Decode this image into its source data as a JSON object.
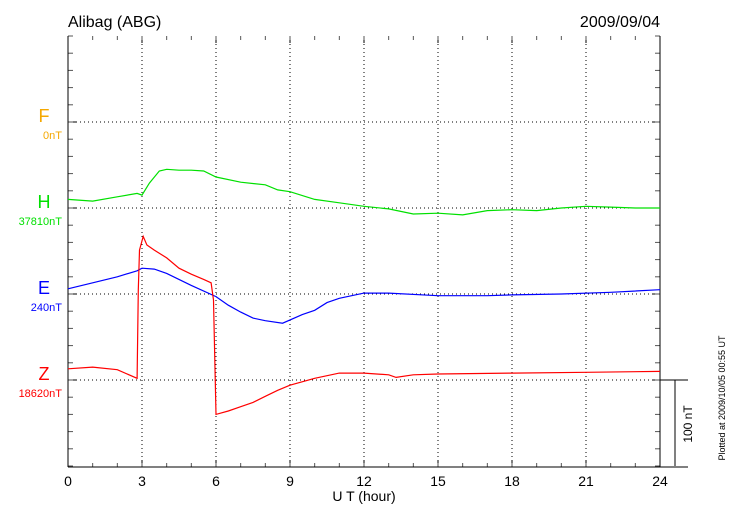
{
  "header": {
    "station": "Alibag (ABG)",
    "date": "2009/09/04"
  },
  "footer_note": "Plotted at 2009/10/05 00:55 UT",
  "chart_data": {
    "type": "line",
    "xlabel": "U T (hour)",
    "xlim": [
      0,
      24
    ],
    "xticks": [
      "0",
      "3",
      "6",
      "9",
      "12",
      "15",
      "18",
      "21",
      "24"
    ],
    "x_minor_tick_step_hours": 1,
    "y_tick_step_nT": 20,
    "grid": true,
    "scale_bar": {
      "value_nT": 100,
      "label": "100 nT"
    },
    "panel_range_nT": [
      -100,
      100
    ],
    "series": [
      {
        "name": "F",
        "baseline_label": "0nT",
        "color": "#f5a800",
        "x": [],
        "y": []
      },
      {
        "name": "H",
        "baseline_label": "37810nT",
        "color": "#00e000",
        "x": [
          0,
          1,
          2,
          2.8,
          3,
          3.3,
          3.7,
          4,
          4.5,
          5,
          5.5,
          6,
          7,
          8,
          8.5,
          9,
          10,
          11,
          12,
          13,
          14,
          15,
          16,
          17,
          18,
          19,
          20,
          21,
          22,
          23,
          24
        ],
        "y": [
          10,
          8,
          13,
          17,
          15,
          29,
          43,
          45,
          44,
          44,
          43,
          36,
          30,
          27,
          21,
          19,
          10,
          6,
          2,
          -1,
          -7,
          -6,
          -8,
          -3,
          -2,
          -3,
          0,
          2,
          1,
          0,
          0
        ]
      },
      {
        "name": "E",
        "baseline_label": "240nT",
        "color": "#0000ff",
        "x": [
          0,
          1,
          2,
          2.8,
          3,
          3.5,
          4,
          5,
          6,
          6.5,
          7,
          7.5,
          8,
          8.7,
          9.5,
          10,
          10.5,
          11,
          12,
          13,
          15,
          17,
          18,
          20,
          22,
          24
        ],
        "y": [
          6,
          13,
          20,
          27,
          30,
          29,
          24,
          10,
          -3,
          -13,
          -21,
          -28,
          -31,
          -34,
          -24,
          -19,
          -10,
          -5,
          1,
          1,
          -2,
          -2,
          -1,
          0,
          2,
          5
        ]
      },
      {
        "name": "Z",
        "baseline_label": "18620nT",
        "color": "#ff0000",
        "x": [
          0,
          1,
          2,
          2.8,
          2.85,
          2.9,
          3.05,
          3.2,
          3.5,
          4,
          4.5,
          5,
          5.5,
          5.8,
          5.9,
          6,
          6.5,
          7,
          7.5,
          8,
          8.5,
          9,
          10,
          11,
          12,
          13,
          13.3,
          14,
          15,
          18,
          21,
          24
        ],
        "y": [
          13,
          15,
          12,
          2,
          105,
          151,
          167,
          157,
          151,
          142,
          130,
          123,
          117,
          113,
          93,
          -40,
          -36,
          -31,
          -26,
          -19,
          -12,
          -6,
          2,
          8,
          8,
          6,
          3,
          6,
          7,
          8,
          9,
          10
        ]
      }
    ]
  }
}
